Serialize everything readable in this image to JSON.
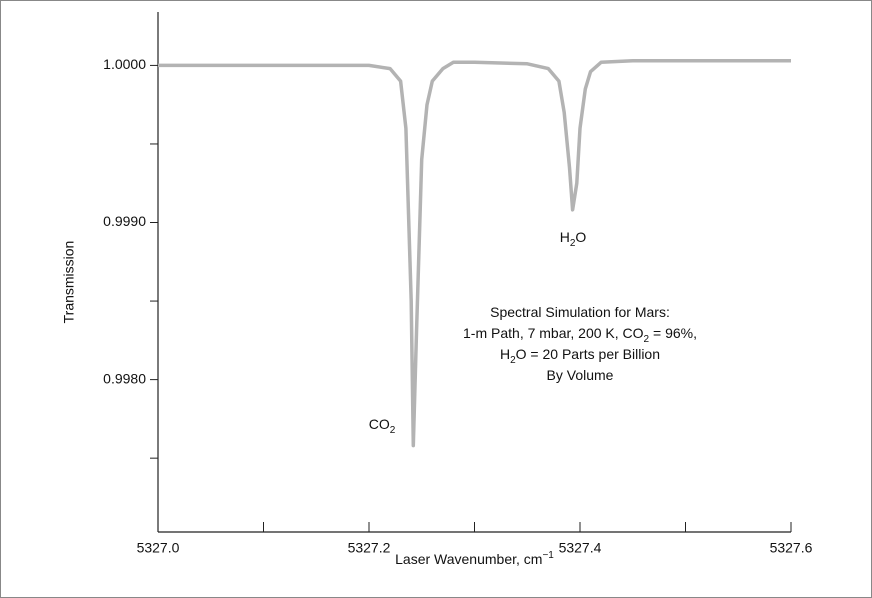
{
  "chart_data": {
    "type": "line",
    "x_label": {
      "parts": [
        {
          "text": "Laser Wavenumber, cm"
        },
        {
          "sup": "−1"
        }
      ]
    },
    "y_label": "Transmission",
    "x": [
      5327.0,
      5327.1,
      5327.2,
      5327.22,
      5327.23,
      5327.235,
      5327.24,
      5327.242,
      5327.245,
      5327.25,
      5327.255,
      5327.26,
      5327.27,
      5327.28,
      5327.3,
      5327.35,
      5327.37,
      5327.38,
      5327.385,
      5327.39,
      5327.393,
      5327.397,
      5327.4,
      5327.405,
      5327.41,
      5327.42,
      5327.45,
      5327.5,
      5327.6
    ],
    "series": [
      {
        "color": "#b3b3b3",
        "values": [
          1.0,
          1.0,
          1.0,
          0.99998,
          0.9999,
          0.9996,
          0.9985,
          0.99758,
          0.9983,
          0.9994,
          0.99975,
          0.9999,
          0.99998,
          1.00002,
          1.00002,
          1.00001,
          0.99998,
          0.9999,
          0.9997,
          0.99935,
          0.99908,
          0.99925,
          0.9996,
          0.99985,
          0.99996,
          1.00002,
          1.00003,
          1.00003,
          1.00003
        ]
      }
    ],
    "xlim": [
      5327.0,
      5327.6
    ],
    "ylim": [
      0.99703,
      1.00034
    ],
    "xticks": [
      {
        "value": 5327.0,
        "label": "5327.0"
      },
      {
        "value": 5327.2,
        "label": "5327.2"
      },
      {
        "value": 5327.4,
        "label": "5327.4"
      },
      {
        "value": 5327.6,
        "label": "5327.6"
      }
    ],
    "x_minor_ticks": [
      5327.1,
      5327.3,
      5327.5
    ],
    "yticks": [
      {
        "value": 1.0,
        "label": "1.0000"
      },
      {
        "value": 0.999,
        "label": "0.9990"
      },
      {
        "value": 0.998,
        "label": "0.9980"
      }
    ],
    "y_minor_ticks": [
      0.9995,
      0.9985,
      0.9975
    ],
    "annotations": [
      {
        "lines": [
          [
            {
              "text": "CO"
            },
            {
              "sub": "2"
            }
          ]
        ]
      },
      {
        "lines": [
          [
            {
              "text": "H"
            },
            {
              "sub": "2"
            },
            {
              "text": "O"
            }
          ]
        ]
      },
      {
        "lines": [
          [
            {
              "text": "Spectral Simulation for Mars:"
            }
          ],
          [
            {
              "text": "1-m Path, 7 mbar, 200 K, CO"
            },
            {
              "sub": "2"
            },
            {
              "text": " = 96%,"
            }
          ],
          [
            {
              "text": "H"
            },
            {
              "sub": "2"
            },
            {
              "text": "O = 20 Parts per Billion"
            }
          ],
          [
            {
              "text": "By Volume"
            }
          ]
        ]
      }
    ]
  }
}
